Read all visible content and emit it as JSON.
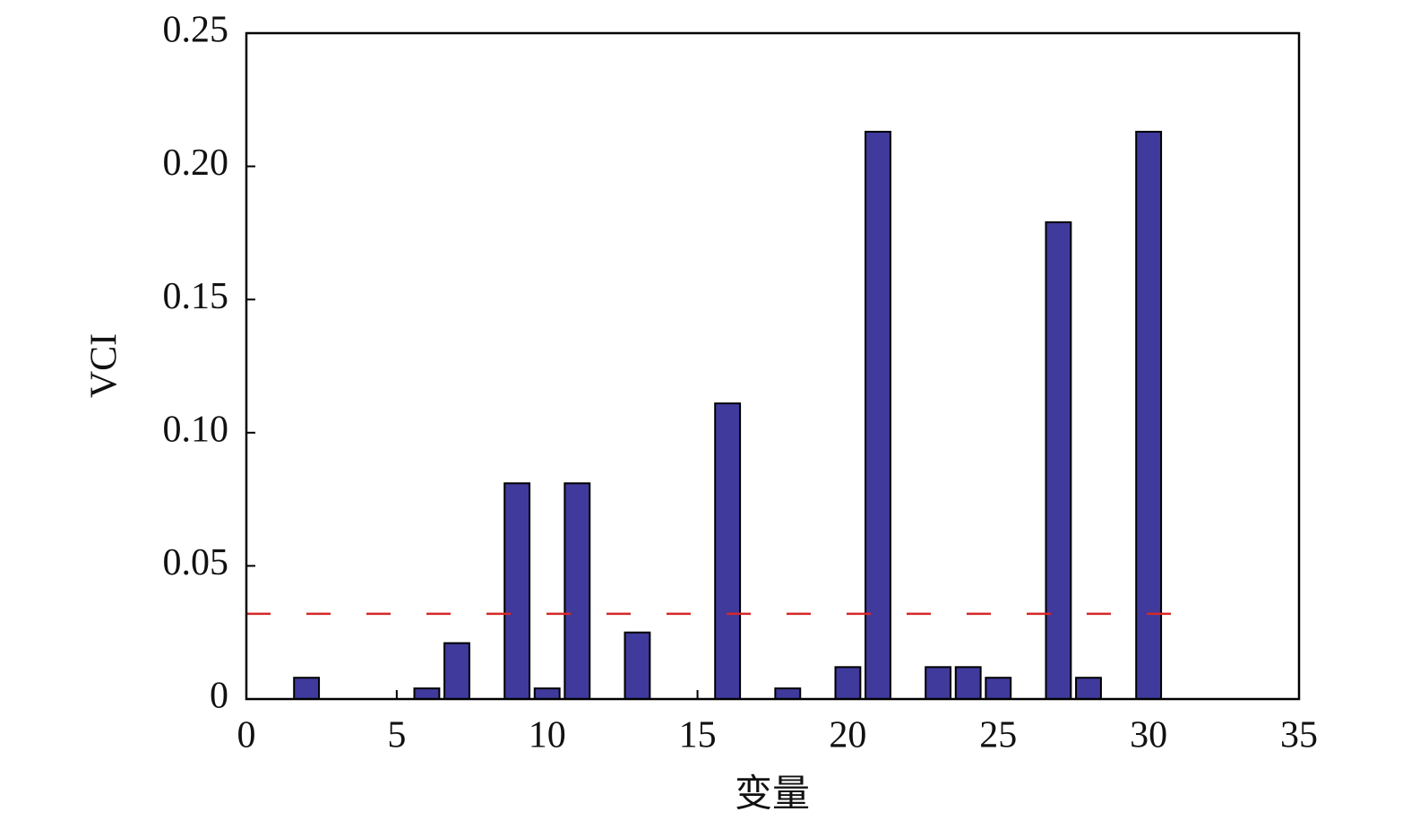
{
  "chart_data": {
    "type": "bar",
    "x_label": "变量",
    "y_label": "VCI",
    "x": [
      2,
      6,
      7,
      9,
      10,
      11,
      13,
      16,
      18,
      20,
      21,
      23,
      24,
      25,
      27,
      28,
      30
    ],
    "values": [
      0.008,
      0.004,
      0.021,
      0.081,
      0.004,
      0.081,
      0.025,
      0.111,
      0.004,
      0.012,
      0.213,
      0.012,
      0.012,
      0.008,
      0.179,
      0.008,
      0.213
    ],
    "color": "#3f3a9c",
    "lines": [
      {
        "color": "#d62728",
        "dashed": true,
        "x": [
          0,
          31
        ],
        "values": [
          0.032,
          0.032
        ]
      }
    ],
    "xlim": [
      0,
      35
    ],
    "xticks": [
      0,
      5,
      10,
      15,
      20,
      25,
      30,
      35
    ],
    "ylim": [
      0,
      0.25
    ],
    "yticks": [
      0,
      0.05,
      {
        "value": 0.1,
        "label": "0.10"
      },
      0.15,
      {
        "value": 0.2,
        "label": "0.20"
      },
      0.25
    ]
  }
}
